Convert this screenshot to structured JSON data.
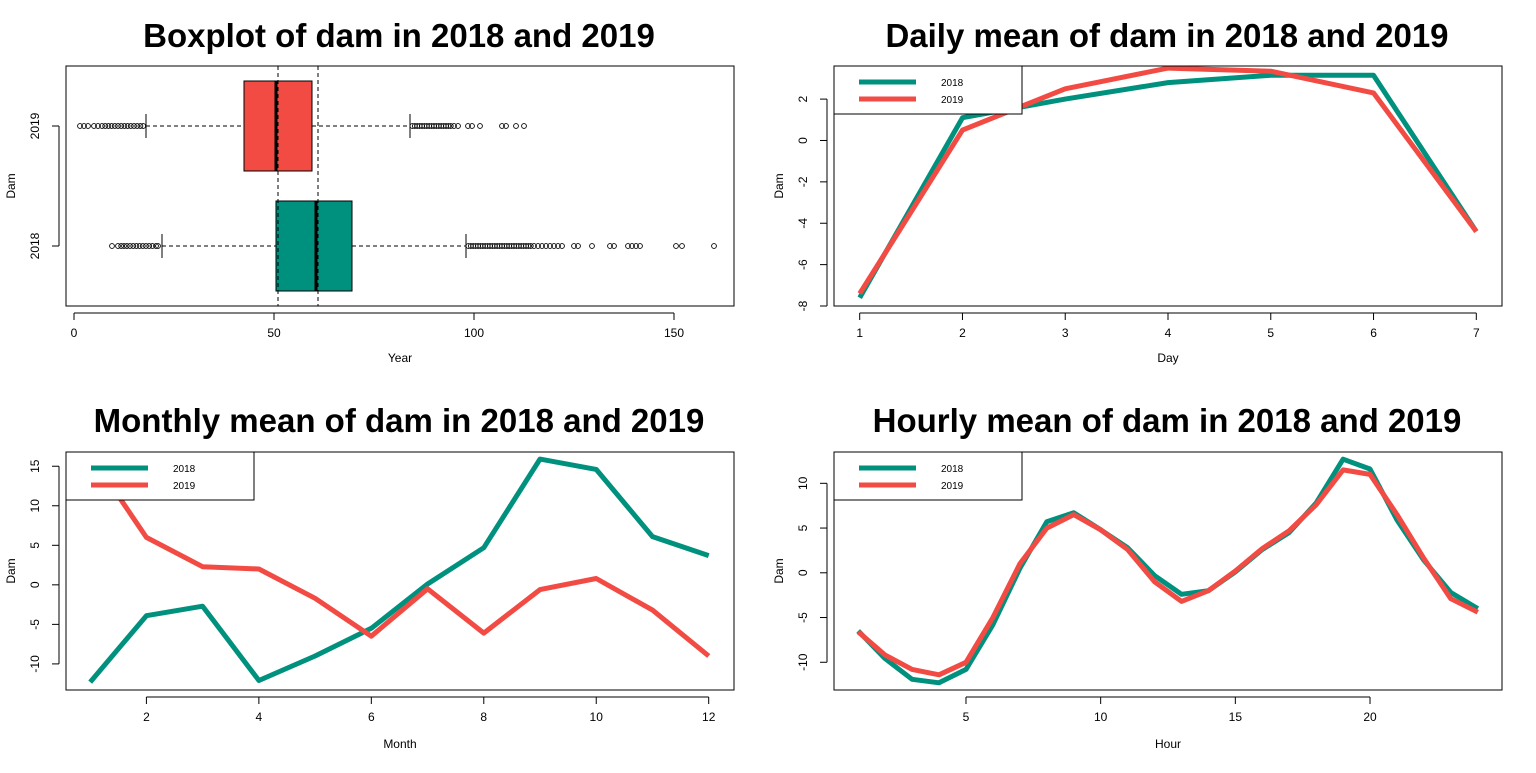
{
  "colors": {
    "y2018": "#00917E",
    "y2019": "#F24B44"
  },
  "chart_data": [
    {
      "id": "boxplot",
      "type": "boxplot",
      "orientation": "horizontal",
      "title": "Boxplot of dam in 2018 and 2019",
      "xlabel": "Year",
      "ylabel": "Dam",
      "xlim": [
        -2,
        165
      ],
      "xticks": [
        0,
        50,
        100,
        150
      ],
      "categories": [
        "2018",
        "2019"
      ],
      "boxes": [
        {
          "name": "2018",
          "whisker_low": 22,
          "q1": 50.5,
          "median": 60.5,
          "q3": 69.5,
          "whisker_high": 98,
          "outliers": [
            9.5,
            11,
            11.8,
            12.5,
            13.2,
            14,
            14.8,
            15.6,
            16.4,
            17.2,
            18,
            18.8,
            19.6,
            20.5,
            21,
            98.6,
            99.2,
            99.8,
            100.4,
            101,
            101.6,
            102.2,
            102.8,
            103.4,
            104,
            104.6,
            105.2,
            105.8,
            106.4,
            107,
            107.6,
            108.2,
            108.8,
            109.4,
            110,
            110.6,
            111.2,
            111.8,
            112.4,
            113,
            113.6,
            114.2,
            115,
            116,
            117,
            118,
            119,
            120,
            121,
            122,
            125,
            126,
            129.5,
            134,
            135,
            138.5,
            139.5,
            140.5,
            141.5,
            150.5,
            152,
            160
          ]
        },
        {
          "name": "2019",
          "whisker_low": 18,
          "q1": 42.5,
          "median": 50.5,
          "q3": 59.5,
          "whisker_high": 84,
          "outliers": [
            1.5,
            2.5,
            3.5,
            5,
            6,
            7,
            7.8,
            8.6,
            9.4,
            10.2,
            11,
            11.8,
            12.6,
            13.4,
            14.2,
            15,
            15.8,
            16.6,
            17.3,
            84.6,
            85.2,
            85.8,
            86.4,
            87,
            87.6,
            88.2,
            88.8,
            89.4,
            90,
            90.6,
            91.2,
            91.8,
            92.4,
            93,
            93.6,
            94.2,
            95,
            96,
            98.5,
            99.5,
            101.5,
            107,
            108,
            110.5,
            112.5
          ]
        }
      ],
      "reference_lines_x": [
        51,
        61
      ]
    },
    {
      "id": "daily",
      "type": "line",
      "title": "Daily mean of dam in 2018 and 2019",
      "xlabel": "Day",
      "ylabel": "Dam",
      "xlim": [
        0.75,
        7.25
      ],
      "ylim": [
        -8,
        3.6
      ],
      "xticks": [
        1,
        2,
        3,
        4,
        5,
        6,
        7
      ],
      "yticks": [
        -8,
        -6,
        -4,
        -2,
        0,
        2
      ],
      "legend": "top-left",
      "x": [
        1,
        2,
        3,
        4,
        5,
        6,
        7
      ],
      "series": [
        {
          "name": "2018",
          "values": [
            -7.6,
            1.1,
            2.0,
            2.8,
            3.15,
            3.15,
            -4.4
          ]
        },
        {
          "name": "2019",
          "values": [
            -7.4,
            0.5,
            2.5,
            3.5,
            3.35,
            2.3,
            -4.4
          ]
        }
      ]
    },
    {
      "id": "monthly",
      "type": "line",
      "title": "Monthly mean of dam in 2018 and 2019",
      "xlabel": "Month",
      "ylabel": "Dam",
      "xlim": [
        0.57,
        12.45
      ],
      "ylim": [
        -13.3,
        16.8
      ],
      "xticks": [
        2,
        4,
        6,
        8,
        10,
        12
      ],
      "yticks": [
        -10,
        -5,
        0,
        5,
        10,
        15
      ],
      "legend": "top-left",
      "x": [
        1,
        2,
        3,
        4,
        5,
        6,
        7,
        8,
        9,
        10,
        11,
        12
      ],
      "series": [
        {
          "name": "2018",
          "values": [
            -12.3,
            -3.9,
            -2.7,
            -12.1,
            -9.0,
            -5.5,
            0.1,
            4.7,
            15.9,
            14.6,
            6.1,
            3.7
          ]
        },
        {
          "name": "2019",
          "values": [
            16.5,
            6.0,
            2.3,
            2.0,
            -1.7,
            -6.5,
            -0.5,
            -6.1,
            -0.6,
            0.8,
            -3.2,
            -9.0
          ]
        }
      ]
    },
    {
      "id": "hourly",
      "type": "line",
      "title": "Hourly mean of dam in 2018 and 2019",
      "xlabel": "Hour",
      "ylabel": "Dam",
      "xlim": [
        0.1,
        24.9
      ],
      "ylim": [
        -13.1,
        13.5
      ],
      "xticks": [
        5,
        10,
        15,
        20
      ],
      "yticks": [
        -10,
        -5,
        0,
        5,
        10
      ],
      "legend": "top-left",
      "x": [
        1,
        2,
        3,
        4,
        5,
        6,
        7,
        8,
        9,
        10,
        11,
        12,
        13,
        14,
        15,
        16,
        17,
        18,
        19,
        20,
        21,
        22,
        23,
        24
      ],
      "series": [
        {
          "name": "2018",
          "values": [
            -6.5,
            -9.6,
            -11.9,
            -12.3,
            -10.8,
            -5.8,
            0.5,
            5.7,
            6.7,
            4.8,
            2.8,
            -0.3,
            -2.4,
            -2.0,
            0.1,
            2.6,
            4.5,
            7.8,
            12.7,
            11.6,
            5.9,
            1.4,
            -2.2,
            -4.0
          ]
        },
        {
          "name": "2019",
          "values": [
            -6.6,
            -9.2,
            -10.8,
            -11.4,
            -10.0,
            -5.0,
            1.0,
            5.0,
            6.5,
            4.8,
            2.6,
            -1.0,
            -3.2,
            -2.0,
            0.2,
            2.7,
            4.7,
            7.6,
            11.5,
            11.0,
            6.5,
            1.6,
            -2.9,
            -4.4
          ]
        }
      ]
    }
  ]
}
